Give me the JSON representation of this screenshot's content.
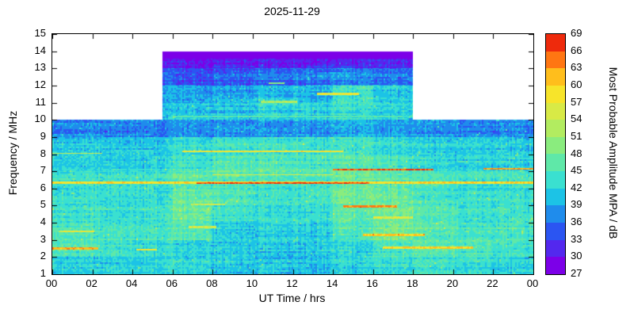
{
  "chart_data": {
    "type": "heatmap",
    "title": "2025-11-29",
    "xlabel": "UT Time / hrs",
    "ylabel": "Frequency / MHz",
    "colorbar_label": "Most Probable Amplitude MPA / dB",
    "x_range": [
      0,
      24
    ],
    "y_range": [
      1,
      15
    ],
    "x_ticks": {
      "values": [
        0,
        2,
        4,
        6,
        8,
        10,
        12,
        14,
        16,
        18,
        20,
        22,
        24
      ],
      "labels": [
        "00",
        "02",
        "04",
        "06",
        "08",
        "10",
        "12",
        "14",
        "16",
        "18",
        "20",
        "22",
        "00"
      ]
    },
    "y_ticks": {
      "values": [
        1,
        2,
        3,
        4,
        5,
        6,
        7,
        8,
        9,
        10,
        11,
        12,
        13,
        14,
        15
      ],
      "labels": [
        "1",
        "2",
        "3",
        "4",
        "5",
        "6",
        "7",
        "8",
        "9",
        "10",
        "11",
        "12",
        "13",
        "14",
        "15"
      ]
    },
    "colorbar": {
      "min": 27,
      "max": 69,
      "tick_step": 3,
      "ticks": [
        27,
        30,
        33,
        36,
        39,
        42,
        45,
        48,
        51,
        54,
        57,
        60,
        63,
        66,
        69
      ],
      "colors": [
        "#7c00e8",
        "#5328ee",
        "#2b55f2",
        "#1f8cec",
        "#1cc3e6",
        "#3ae0d0",
        "#5fe8a8",
        "#8aec7e",
        "#b2ec60",
        "#d8ea46",
        "#f7e42a",
        "#ffbe1c",
        "#ff7612",
        "#ee2a0c"
      ]
    },
    "coverage": [
      {
        "t0": 0,
        "t1": 24,
        "f0": 1,
        "f1": 10
      },
      {
        "t0": 5.5,
        "t1": 18,
        "f0": 10,
        "f1": 14
      }
    ],
    "base_bin_hours": 2,
    "base_grid": [
      [
        42,
        42,
        42,
        42,
        41,
        41,
        41,
        42,
        43,
        44,
        43,
        42
      ],
      [
        45,
        44,
        43,
        42,
        41,
        41,
        41,
        42,
        45,
        46,
        45,
        44
      ],
      [
        46,
        45,
        45,
        46,
        42,
        42,
        42,
        45,
        48,
        46,
        45,
        45
      ],
      [
        44,
        44,
        44,
        47,
        44,
        43,
        43,
        46,
        48,
        45,
        44,
        44
      ],
      [
        43,
        43,
        43,
        47,
        45,
        44,
        44,
        47,
        47,
        44,
        43,
        43
      ],
      [
        44,
        44,
        44,
        46,
        46,
        45,
        45,
        47,
        46,
        45,
        44,
        44
      ],
      [
        42,
        42,
        42,
        44,
        46,
        46,
        45,
        46,
        45,
        43,
        42,
        42
      ],
      [
        41,
        41,
        41,
        43,
        44,
        44,
        44,
        44,
        43,
        42,
        41,
        41
      ],
      [
        37,
        37,
        37,
        38,
        38,
        38,
        38,
        39,
        38,
        37,
        37,
        37
      ],
      [
        40,
        40,
        40,
        41,
        41,
        42,
        42,
        43,
        42,
        40,
        40,
        40
      ],
      [
        38,
        38,
        38,
        38,
        39,
        40,
        40,
        44,
        41,
        38,
        38,
        38
      ],
      [
        35,
        35,
        35,
        34,
        35,
        36,
        36,
        37,
        36,
        35,
        35,
        35
      ],
      [
        30,
        30,
        30,
        30,
        31,
        31,
        31,
        31,
        31,
        30,
        30,
        30
      ]
    ],
    "streaks": [
      {
        "f": 6.35,
        "t0": 0,
        "t1": 24,
        "db": 59,
        "w": 0.12
      },
      {
        "f": 6.3,
        "t0": 7.2,
        "t1": 15.8,
        "db": 66,
        "w": 0.1
      },
      {
        "f": 7.1,
        "t0": 14,
        "t1": 19,
        "db": 66,
        "w": 0.12
      },
      {
        "f": 7.15,
        "t0": 21.5,
        "t1": 24,
        "db": 63,
        "w": 0.1
      },
      {
        "f": 6.8,
        "t0": 8,
        "t1": 14,
        "db": 56,
        "w": 0.08
      },
      {
        "f": 8.15,
        "t0": 6.5,
        "t1": 14.5,
        "db": 58,
        "w": 0.1
      },
      {
        "f": 8.05,
        "t0": 0,
        "t1": 2.5,
        "db": 54,
        "w": 0.08
      },
      {
        "f": 2.5,
        "t0": 0,
        "t1": 2.3,
        "db": 62,
        "w": 0.12
      },
      {
        "f": 2.45,
        "t0": 4.2,
        "t1": 5.2,
        "db": 58,
        "w": 0.1
      },
      {
        "f": 2.55,
        "t0": 16.5,
        "t1": 21,
        "db": 60,
        "w": 0.1
      },
      {
        "f": 3.5,
        "t0": 0.4,
        "t1": 2.1,
        "db": 57,
        "w": 0.1
      },
      {
        "f": 3.3,
        "t0": 15.5,
        "t1": 18.6,
        "db": 61,
        "w": 0.12
      },
      {
        "f": 3.75,
        "t0": 6.8,
        "t1": 8.2,
        "db": 55,
        "w": 0.1
      },
      {
        "f": 4.95,
        "t0": 14.5,
        "t1": 17.2,
        "db": 64,
        "w": 0.12
      },
      {
        "f": 5.05,
        "t0": 6.9,
        "t1": 8.6,
        "db": 55,
        "w": 0.1
      },
      {
        "f": 4.3,
        "t0": 16,
        "t1": 18,
        "db": 56,
        "w": 0.1
      },
      {
        "f": 11.5,
        "t0": 13.2,
        "t1": 15.3,
        "db": 57,
        "w": 0.16
      },
      {
        "f": 11.05,
        "t0": 10.4,
        "t1": 12.2,
        "db": 52,
        "w": 0.12
      },
      {
        "f": 12.15,
        "t0": 10.8,
        "t1": 11.6,
        "db": 50,
        "w": 0.1
      },
      {
        "f": 10.2,
        "t0": 6,
        "t1": 18,
        "db": 46,
        "w": 0.08
      },
      {
        "f": 13.8,
        "t0": 5.5,
        "t1": 18,
        "db": 28,
        "w": 0.45,
        "set": true
      }
    ],
    "noise": {
      "speckle": 2.0,
      "column": 1.2,
      "row": 1.0,
      "streak": 1.3
    }
  }
}
